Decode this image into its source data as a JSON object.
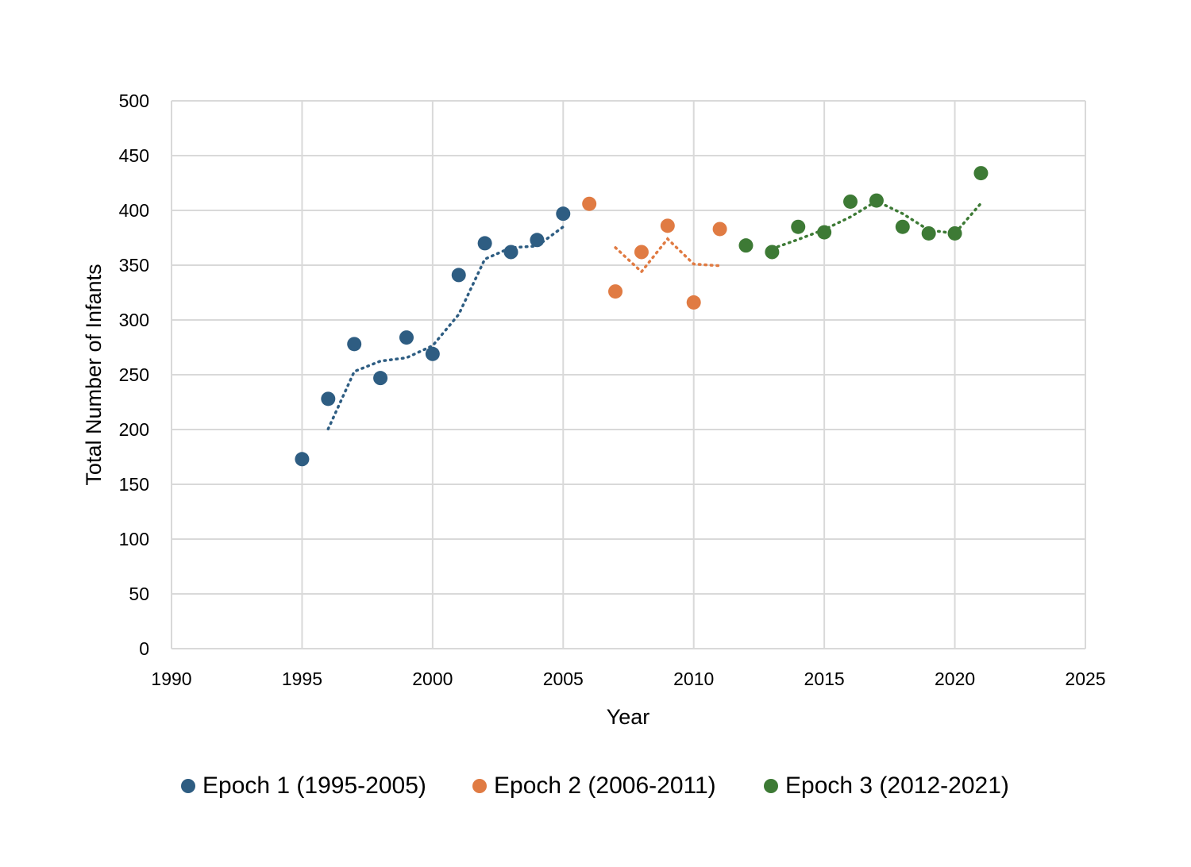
{
  "chart_data": {
    "type": "scatter",
    "xlabel": "Year",
    "ylabel": "Total Number of Infants",
    "xlim": [
      1990,
      2025
    ],
    "ylim": [
      0,
      500
    ],
    "x_ticks": [
      1990,
      1995,
      2000,
      2005,
      2010,
      2015,
      2020,
      2025
    ],
    "y_ticks": [
      0,
      50,
      100,
      150,
      200,
      250,
      300,
      350,
      400,
      450,
      500
    ],
    "grid": true,
    "legend_position": "bottom",
    "trendline": "dotted 2-period moving average",
    "series": [
      {
        "name": "Epoch 1 (1995-2005)",
        "color": "#2e5d82",
        "x": [
          1995,
          1996,
          1997,
          1998,
          1999,
          2000,
          2001,
          2002,
          2003,
          2004,
          2005
        ],
        "y": [
          173,
          228,
          278,
          247,
          284,
          269,
          341,
          370,
          362,
          373,
          397
        ]
      },
      {
        "name": "Epoch 2 (2006-2011)",
        "color": "#e07b43",
        "x": [
          2006,
          2007,
          2008,
          2009,
          2010,
          2011
        ],
        "y": [
          406,
          326,
          362,
          386,
          316,
          383
        ]
      },
      {
        "name": "Epoch 3 (2012-2021)",
        "color": "#3d7a35",
        "x": [
          2012,
          2013,
          2014,
          2015,
          2016,
          2017,
          2018,
          2019,
          2020,
          2021
        ],
        "y": [
          368,
          362,
          385,
          380,
          408,
          409,
          385,
          379,
          379,
          434
        ]
      }
    ]
  }
}
